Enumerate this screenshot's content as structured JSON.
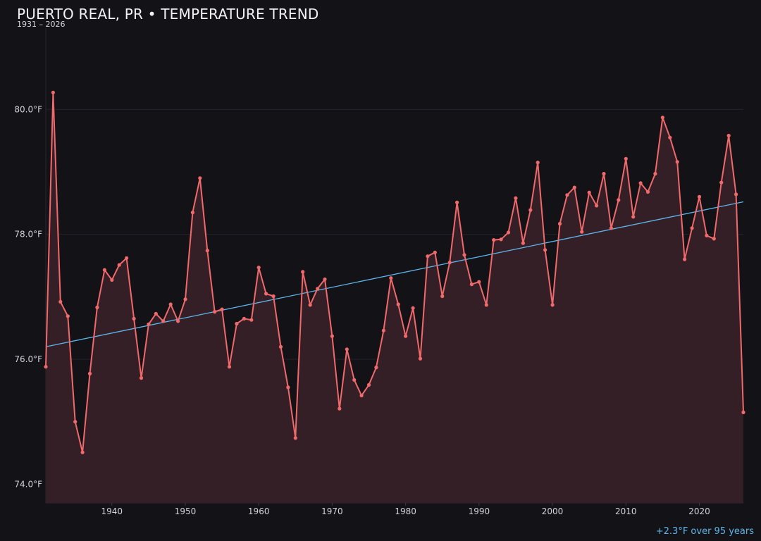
{
  "header": {
    "title": "PUERTO REAL, PR • TEMPERATURE TREND",
    "subtitle": "1931 – 2026"
  },
  "footer": {
    "trend_note": "+2.3°F over 95 years"
  },
  "colors": {
    "background": "#131217",
    "line": "#f0696b",
    "area_fill": "#351f26",
    "trend": "#5db6ea",
    "grid": "#25232b",
    "text": "#d2d2d8"
  },
  "chart_data": {
    "type": "line",
    "title": "PUERTO REAL, PR • TEMPERATURE TREND",
    "subtitle": "1931 – 2026",
    "xlabel": "",
    "ylabel": "",
    "xlim": [
      1931,
      2026
    ],
    "ylim": [
      73.7,
      81.3
    ],
    "x_ticks": [
      1940,
      1950,
      1960,
      1970,
      1980,
      1990,
      2000,
      2010,
      2020
    ],
    "y_ticks": [
      74.0,
      76.0,
      78.0,
      80.0
    ],
    "y_tick_labels": [
      "74.0°F",
      "76.0°F",
      "78.0°F",
      "80.0°F"
    ],
    "grid": "horizontal",
    "area_fill": true,
    "x": [
      1931,
      1932,
      1933,
      1934,
      1935,
      1936,
      1937,
      1938,
      1939,
      1940,
      1941,
      1942,
      1943,
      1944,
      1945,
      1946,
      1947,
      1948,
      1949,
      1950,
      1951,
      1952,
      1953,
      1954,
      1955,
      1956,
      1957,
      1958,
      1959,
      1960,
      1961,
      1962,
      1963,
      1964,
      1965,
      1966,
      1967,
      1968,
      1969,
      1970,
      1971,
      1972,
      1973,
      1974,
      1975,
      1976,
      1977,
      1978,
      1979,
      1980,
      1981,
      1982,
      1983,
      1984,
      1985,
      1986,
      1987,
      1988,
      1989,
      1990,
      1991,
      1992,
      1993,
      1994,
      1995,
      1996,
      1997,
      1998,
      1999,
      2000,
      2001,
      2002,
      2003,
      2004,
      2005,
      2006,
      2007,
      2008,
      2009,
      2010,
      2011,
      2012,
      2013,
      2014,
      2015,
      2016,
      2017,
      2018,
      2019,
      2020,
      2021,
      2022,
      2023,
      2024,
      2025,
      2026
    ],
    "series": [
      {
        "values": [
          75.88,
          80.27,
          76.92,
          76.69,
          75.0,
          74.51,
          75.77,
          76.83,
          77.43,
          77.27,
          77.51,
          77.62,
          76.65,
          75.7,
          76.56,
          76.73,
          76.61,
          76.88,
          76.61,
          76.96,
          78.35,
          78.9,
          77.74,
          76.76,
          76.8,
          75.88,
          76.57,
          76.65,
          76.63,
          77.47,
          77.05,
          77.01,
          76.2,
          75.55,
          74.74,
          77.4,
          76.87,
          77.13,
          77.28,
          76.37,
          75.21,
          76.16,
          75.67,
          75.42,
          75.59,
          75.87,
          76.46,
          77.3,
          76.88,
          76.37,
          76.82,
          76.01,
          77.65,
          77.71,
          77.01,
          77.55,
          78.51,
          77.67,
          77.2,
          77.24,
          76.87,
          77.91,
          77.92,
          78.03,
          78.58,
          77.86,
          78.39,
          79.15,
          77.75,
          76.87,
          78.17,
          78.63,
          78.75,
          78.04,
          78.67,
          78.46,
          78.97,
          78.1,
          78.55,
          79.21,
          78.28,
          78.82,
          78.68,
          78.97,
          79.87,
          79.55,
          79.16,
          77.6,
          78.1,
          78.6,
          77.98,
          77.93,
          78.83,
          79.58,
          78.64,
          75.15
        ]
      }
    ],
    "trend_line": {
      "x": [
        1931,
        2026
      ],
      "y": [
        76.2,
        78.52
      ]
    }
  }
}
